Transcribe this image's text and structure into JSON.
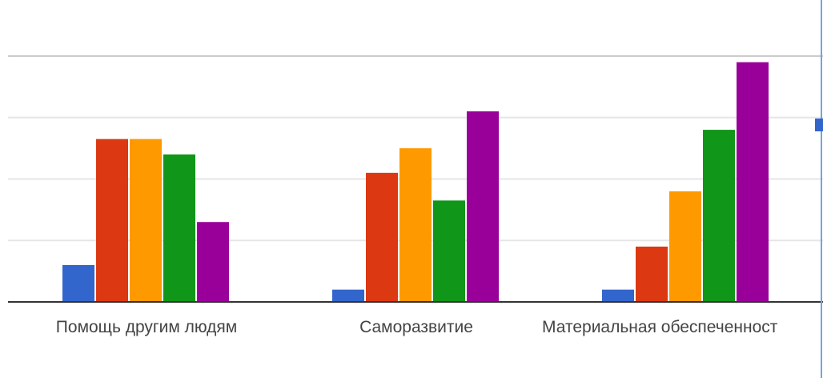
{
  "chart_data": {
    "type": "bar",
    "categories": [
      "Помощь другим людям",
      "Саморазвитие",
      "Материальная обеспеченност"
    ],
    "series": [
      {
        "color": "#3366cc",
        "values": [
          0.6,
          0.2,
          0.2
        ]
      },
      {
        "color": "#dc3912",
        "values": [
          2.65,
          2.1,
          0.9
        ]
      },
      {
        "color": "#ff9900",
        "values": [
          2.65,
          2.5,
          1.8
        ]
      },
      {
        "color": "#109618",
        "values": [
          2.4,
          1.65,
          2.8
        ]
      },
      {
        "color": "#990099",
        "values": [
          1.3,
          3.1,
          3.9
        ]
      }
    ],
    "ylim": [
      0,
      4
    ],
    "grid": true,
    "legend": "right (clipped)",
    "title": "",
    "xlabel": "",
    "ylabel": ""
  }
}
